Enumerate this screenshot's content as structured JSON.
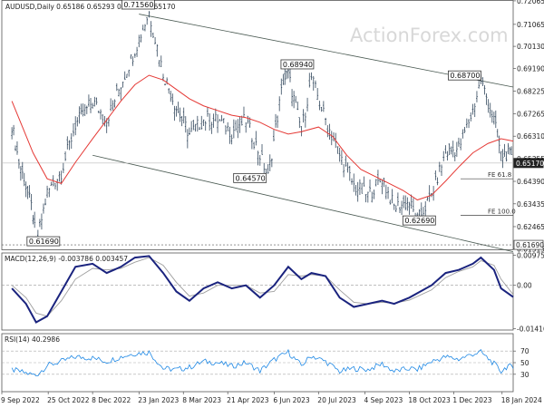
{
  "header": {
    "instrument": "AUDUSD,Daily",
    "quote": "0.65186 0.65293 0.65144 0.65170"
  },
  "watermark": "ActionForex.com",
  "chart_data": [
    {
      "type": "line",
      "panel": "price",
      "ylim": [
        0.615,
        0.721
      ],
      "y_ticks": [
        "0.72065",
        "0.71065",
        "0.70130",
        "0.69190",
        "0.68225",
        "0.67265",
        "0.66310",
        "0.65355",
        "0.64390",
        "0.63435",
        "0.62465",
        "0.61515"
      ],
      "current_price": "0.65170",
      "support_marker": "0.61690",
      "series": [
        {
          "color": "#34495e",
          "style": "ohlc-bars",
          "points": [
            [
              "2022-09-19",
              0.668
            ],
            [
              "2022-09-26",
              0.652
            ],
            [
              "2022-10-03",
              0.642
            ],
            [
              "2022-10-10",
              0.63
            ],
            [
              "2022-10-13",
              0.6169
            ],
            [
              "2022-10-24",
              0.639
            ],
            [
              "2022-11-07",
              0.648
            ],
            [
              "2022-11-21",
              0.668
            ],
            [
              "2022-12-08",
              0.678
            ],
            [
              "2022-12-22",
              0.67
            ],
            [
              "2023-01-05",
              0.685
            ],
            [
              "2023-01-19",
              0.7
            ],
            [
              "2023-02-02",
              0.7156
            ],
            [
              "2023-02-16",
              0.69
            ],
            [
              "2023-03-01",
              0.675
            ],
            [
              "2023-03-14",
              0.664
            ],
            [
              "2023-03-28",
              0.67
            ],
            [
              "2023-04-11",
              0.67
            ],
            [
              "2023-04-25",
              0.665
            ],
            [
              "2023-05-09",
              0.67
            ],
            [
              "2023-05-23",
              0.655
            ],
            [
              "2023-05-31",
              0.6457
            ],
            [
              "2023-06-15",
              0.687
            ],
            [
              "2023-06-20",
              0.6894
            ],
            [
              "2023-07-03",
              0.665
            ],
            [
              "2023-07-13",
              0.688
            ],
            [
              "2023-07-27",
              0.67
            ],
            [
              "2023-08-10",
              0.655
            ],
            [
              "2023-08-24",
              0.642
            ],
            [
              "2023-09-07",
              0.638
            ],
            [
              "2023-09-21",
              0.645
            ],
            [
              "2023-10-03",
              0.633
            ],
            [
              "2023-10-18",
              0.635
            ],
            [
              "2023-10-26",
              0.6269
            ],
            [
              "2023-11-09",
              0.638
            ],
            [
              "2023-11-23",
              0.656
            ],
            [
              "2023-12-06",
              0.658
            ],
            [
              "2023-12-20",
              0.674
            ],
            [
              "2023-12-28",
              0.687
            ],
            [
              "2024-01-10",
              0.67
            ],
            [
              "2024-01-17",
              0.655
            ],
            [
              "2024-01-24",
              0.656
            ],
            [
              "2024-01-29",
              0.6517
            ]
          ]
        },
        {
          "color": "#e53935",
          "style": "moving-average",
          "points": [
            [
              "2022-09-19",
              0.678
            ],
            [
              "2022-10-10",
              0.656
            ],
            [
              "2022-10-24",
              0.645
            ],
            [
              "2022-11-07",
              0.643
            ],
            [
              "2022-11-21",
              0.652
            ],
            [
              "2022-12-08",
              0.662
            ],
            [
              "2022-12-22",
              0.67
            ],
            [
              "2023-01-05",
              0.678
            ],
            [
              "2023-01-19",
              0.685
            ],
            [
              "2023-02-02",
              0.689
            ],
            [
              "2023-02-16",
              0.687
            ],
            [
              "2023-03-01",
              0.683
            ],
            [
              "2023-03-14",
              0.679
            ],
            [
              "2023-03-28",
              0.676
            ],
            [
              "2023-04-11",
              0.674
            ],
            [
              "2023-04-25",
              0.672
            ],
            [
              "2023-05-09",
              0.671
            ],
            [
              "2023-05-23",
              0.669
            ],
            [
              "2023-06-06",
              0.666
            ],
            [
              "2023-06-20",
              0.664
            ],
            [
              "2023-07-03",
              0.665
            ],
            [
              "2023-07-20",
              0.667
            ],
            [
              "2023-08-03",
              0.663
            ],
            [
              "2023-08-17",
              0.655
            ],
            [
              "2023-08-31",
              0.649
            ],
            [
              "2023-09-14",
              0.646
            ],
            [
              "2023-09-28",
              0.643
            ],
            [
              "2023-10-12",
              0.64
            ],
            [
              "2023-10-26",
              0.636
            ],
            [
              "2023-11-09",
              0.638
            ],
            [
              "2023-11-23",
              0.644
            ],
            [
              "2023-12-06",
              0.65
            ],
            [
              "2023-12-20",
              0.656
            ],
            [
              "2024-01-04",
              0.66
            ],
            [
              "2024-01-17",
              0.662
            ],
            [
              "2024-01-29",
              0.661
            ]
          ]
        }
      ],
      "trendlines": [
        {
          "from": [
            "2023-01-23",
            0.715
          ],
          "to": [
            "2024-01-29",
            0.684
          ]
        },
        {
          "from": [
            "2022-12-08",
            0.655
          ],
          "to": [
            "2024-01-29",
            0.614
          ]
        }
      ],
      "annotations": [
        {
          "text": "0.71560",
          "x": "2023-02-02",
          "y": 0.7156
        },
        {
          "text": "0.68940",
          "x": "2023-06-20",
          "y": 0.6894
        },
        {
          "text": "0.68700",
          "x": "2023-12-28",
          "y": 0.687
        },
        {
          "text": "0.64570",
          "x": "2023-05-31",
          "y": 0.6457
        },
        {
          "text": "0.62690",
          "x": "2023-10-26",
          "y": 0.6269
        },
        {
          "text": "0.61690",
          "x": "2022-10-13",
          "y": 0.6169
        }
      ],
      "fib_levels": [
        {
          "text": "FE 61.8",
          "y": 0.645
        },
        {
          "text": "FE 100.0",
          "y": 0.6295
        }
      ]
    },
    {
      "type": "line",
      "panel": "macd",
      "title": "MACD(12,26,9) -0.003786 0.003457",
      "ylim": [
        -0.0145,
        0.0105
      ],
      "y_ticks": [
        "0.009751",
        "0.00",
        "-0.014107"
      ],
      "series": [
        {
          "color": "#1a237e",
          "style": "main",
          "points": [
            [
              "2022-09-19",
              -0.001
            ],
            [
              "2022-10-03",
              -0.006
            ],
            [
              "2022-10-13",
              -0.012
            ],
            [
              "2022-10-24",
              -0.01
            ],
            [
              "2022-11-07",
              -0.002
            ],
            [
              "2022-11-21",
              0.006
            ],
            [
              "2022-12-08",
              0.007
            ],
            [
              "2022-12-22",
              0.004
            ],
            [
              "2023-01-05",
              0.006
            ],
            [
              "2023-01-19",
              0.009
            ],
            [
              "2023-02-02",
              0.0095
            ],
            [
              "2023-02-16",
              0.004
            ],
            [
              "2023-03-01",
              -0.002
            ],
            [
              "2023-03-14",
              -0.005
            ],
            [
              "2023-03-28",
              -0.001
            ],
            [
              "2023-04-11",
              0.001
            ],
            [
              "2023-04-25",
              -0.001
            ],
            [
              "2023-05-09",
              0.0
            ],
            [
              "2023-05-23",
              -0.004
            ],
            [
              "2023-06-06",
              0.0
            ],
            [
              "2023-06-20",
              0.006
            ],
            [
              "2023-07-03",
              0.002
            ],
            [
              "2023-07-13",
              0.004
            ],
            [
              "2023-07-27",
              0.003
            ],
            [
              "2023-08-10",
              -0.004
            ],
            [
              "2023-08-24",
              -0.007
            ],
            [
              "2023-09-07",
              -0.006
            ],
            [
              "2023-09-21",
              -0.005
            ],
            [
              "2023-10-03",
              -0.006
            ],
            [
              "2023-10-18",
              -0.004
            ],
            [
              "2023-11-09",
              0.0
            ],
            [
              "2023-11-23",
              0.004
            ],
            [
              "2023-12-06",
              0.005
            ],
            [
              "2023-12-20",
              0.007
            ],
            [
              "2023-12-28",
              0.009
            ],
            [
              "2024-01-10",
              0.005
            ],
            [
              "2024-01-17",
              -0.001
            ],
            [
              "2024-01-29",
              -0.0038
            ]
          ]
        },
        {
          "color": "#9e9e9e",
          "style": "signal",
          "points": [
            [
              "2022-09-19",
              0.0
            ],
            [
              "2022-10-03",
              -0.004
            ],
            [
              "2022-10-13",
              -0.009
            ],
            [
              "2022-10-24",
              -0.01
            ],
            [
              "2022-11-07",
              -0.005
            ],
            [
              "2022-11-21",
              0.002
            ],
            [
              "2022-12-08",
              0.0055
            ],
            [
              "2022-12-22",
              0.005
            ],
            [
              "2023-01-05",
              0.0055
            ],
            [
              "2023-01-19",
              0.0075
            ],
            [
              "2023-02-02",
              0.009
            ],
            [
              "2023-02-16",
              0.0065
            ],
            [
              "2023-03-01",
              0.001
            ],
            [
              "2023-03-14",
              -0.0035
            ],
            [
              "2023-03-28",
              -0.0025
            ],
            [
              "2023-04-11",
              0.0
            ],
            [
              "2023-04-25",
              0.0
            ],
            [
              "2023-05-09",
              0.0
            ],
            [
              "2023-05-23",
              -0.0025
            ],
            [
              "2023-06-06",
              -0.002
            ],
            [
              "2023-06-20",
              0.0035
            ],
            [
              "2023-07-03",
              0.003
            ],
            [
              "2023-07-13",
              0.0035
            ],
            [
              "2023-07-27",
              0.003
            ],
            [
              "2023-08-10",
              -0.0015
            ],
            [
              "2023-08-24",
              -0.0055
            ],
            [
              "2023-09-07",
              -0.006
            ],
            [
              "2023-09-21",
              -0.0055
            ],
            [
              "2023-10-03",
              -0.0058
            ],
            [
              "2023-10-18",
              -0.0048
            ],
            [
              "2023-11-09",
              -0.0015
            ],
            [
              "2023-11-23",
              0.0025
            ],
            [
              "2023-12-06",
              0.0045
            ],
            [
              "2023-12-20",
              0.006
            ],
            [
              "2023-12-28",
              0.008
            ],
            [
              "2024-01-10",
              0.0065
            ],
            [
              "2024-01-17",
              0.002
            ],
            [
              "2024-01-29",
              -0.003
            ]
          ]
        }
      ]
    },
    {
      "type": "line",
      "panel": "rsi",
      "title": "RSI(14) 40.2986",
      "ylim": [
        0,
        100
      ],
      "y_ticks": [
        "70",
        "50",
        "30"
      ],
      "levels": [
        70,
        50,
        30
      ],
      "series": [
        {
          "color": "#1e88e5",
          "style": "main",
          "points": [
            [
              "2022-09-19",
              38
            ],
            [
              "2022-10-03",
              32
            ],
            [
              "2022-10-13",
              28
            ],
            [
              "2022-10-24",
              45
            ],
            [
              "2022-11-07",
              52
            ],
            [
              "2022-11-21",
              60
            ],
            [
              "2022-12-08",
              58
            ],
            [
              "2022-12-22",
              52
            ],
            [
              "2023-01-05",
              60
            ],
            [
              "2023-01-19",
              66
            ],
            [
              "2023-02-02",
              68
            ],
            [
              "2023-02-16",
              40
            ],
            [
              "2023-03-01",
              38
            ],
            [
              "2023-03-14",
              42
            ],
            [
              "2023-03-28",
              52
            ],
            [
              "2023-04-11",
              50
            ],
            [
              "2023-04-25",
              44
            ],
            [
              "2023-05-09",
              50
            ],
            [
              "2023-05-23",
              36
            ],
            [
              "2023-06-06",
              55
            ],
            [
              "2023-06-20",
              68
            ],
            [
              "2023-07-03",
              45
            ],
            [
              "2023-07-13",
              62
            ],
            [
              "2023-07-27",
              52
            ],
            [
              "2023-08-10",
              35
            ],
            [
              "2023-08-24",
              40
            ],
            [
              "2023-09-07",
              38
            ],
            [
              "2023-09-21",
              48
            ],
            [
              "2023-10-03",
              35
            ],
            [
              "2023-10-18",
              40
            ],
            [
              "2023-10-26",
              38
            ],
            [
              "2023-11-09",
              52
            ],
            [
              "2023-11-23",
              60
            ],
            [
              "2023-12-06",
              56
            ],
            [
              "2023-12-20",
              65
            ],
            [
              "2023-12-28",
              68
            ],
            [
              "2024-01-10",
              48
            ],
            [
              "2024-01-17",
              35
            ],
            [
              "2024-01-24",
              45
            ],
            [
              "2024-01-29",
              40
            ]
          ]
        }
      ]
    }
  ],
  "x_ticks": [
    "9 Sep 2022",
    "25 Oct 2022",
    "8 Dec 2022",
    "23 Jan 2023",
    "8 Mar 2023",
    "21 Apr 2023",
    "6 Jun 2023",
    "20 Jul 2023",
    "4 Sep 2023",
    "18 Oct 2023",
    "1 Dec 2023",
    "18 Jan 2024"
  ]
}
